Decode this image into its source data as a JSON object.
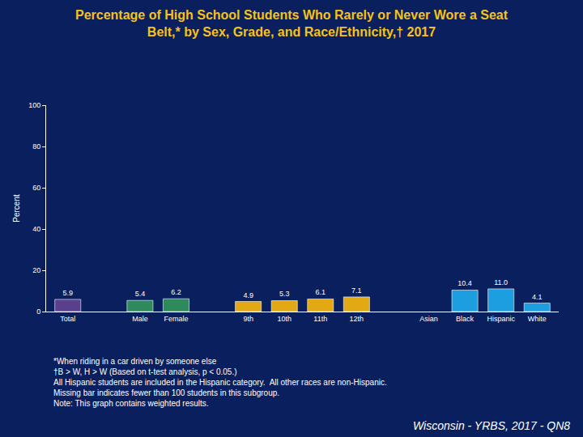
{
  "chart_data": {
    "type": "bar",
    "title": [
      "Percentage of High School Students Who Rarely or Never Wore a Seat",
      "Belt,* by Sex, Grade, and Race/Ethnicity,† 2017"
    ],
    "y_label": "Percent",
    "categories": [
      "Total",
      null,
      "Male",
      "Female",
      null,
      "9th",
      "10th",
      "11th",
      "12th",
      null,
      "Asian",
      "Black",
      "Hispanic",
      "White"
    ],
    "values": [
      5.9,
      null,
      5.4,
      6.2,
      null,
      4.9,
      5.3,
      6.1,
      7.1,
      null,
      null,
      10.4,
      11.0,
      4.1
    ],
    "value_labels": [
      "5.9",
      null,
      "5.4",
      "6.2",
      null,
      "4.9",
      "5.3",
      "6.1",
      "7.1",
      null,
      null,
      "10.4",
      "11.0",
      "4.1"
    ],
    "colors": [
      "#5a3f8e",
      null,
      "#2e8a5a",
      "#2e8a5a",
      null,
      "#e3a914",
      "#e3a914",
      "#e3a914",
      "#e3a914",
      null,
      null,
      "#1c9ee0",
      "#1c9ee0",
      "#1c9ee0"
    ],
    "ylim": [
      0,
      100
    ],
    "yticks": [
      0,
      20,
      40,
      60,
      80,
      100
    ],
    "grid": false,
    "data_labels": true,
    "footnotes": [
      "*When riding in a car driven by someone else",
      "†B > W, H > W (Based on t-test analysis, p < 0.05.)",
      "All Hispanic students are included in the Hispanic category.  All other races are non-Hispanic.",
      "Missing bar indicates fewer than 100 students in this subgroup.",
      "Note: This graph contains weighted results."
    ],
    "source": "Wisconsin - YRBS, 2017 - QN8"
  }
}
